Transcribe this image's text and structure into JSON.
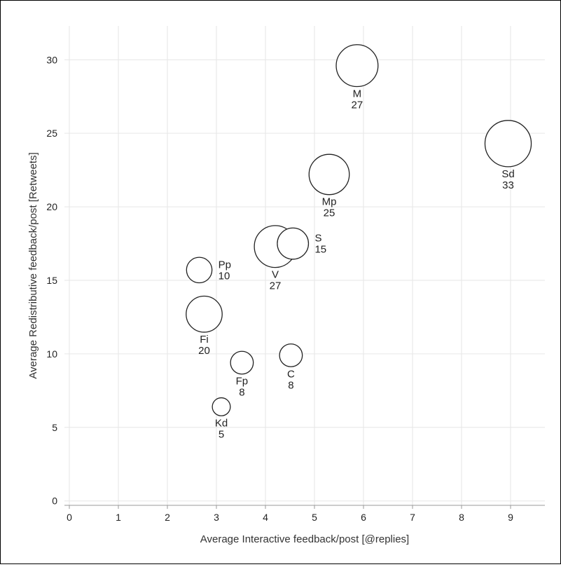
{
  "chart_data": {
    "type": "scatter",
    "subtype": "bubble",
    "xlabel": "Average Interactive feedback/post [@replies]",
    "ylabel": "Average Redistributive feedback/post [Retweets]",
    "xlim": [
      -0.1,
      9.7
    ],
    "ylim": [
      -0.3,
      32.3
    ],
    "xticks": [
      0,
      1,
      2,
      3,
      4,
      5,
      6,
      7,
      8,
      9
    ],
    "yticks": [
      0,
      5,
      10,
      15,
      20,
      25,
      30
    ],
    "grid": true,
    "points": [
      {
        "label": "M",
        "value": 27,
        "x": 5.87,
        "y": 29.6
      },
      {
        "label": "Sd",
        "value": 33,
        "x": 8.95,
        "y": 24.3
      },
      {
        "label": "Mp",
        "value": 25,
        "x": 5.3,
        "y": 22.2
      },
      {
        "label": "V",
        "value": 27,
        "x": 4.2,
        "y": 17.3
      },
      {
        "label": "S",
        "value": 15,
        "x": 4.56,
        "y": 17.5
      },
      {
        "label": "Pp",
        "value": 10,
        "x": 2.65,
        "y": 15.7
      },
      {
        "label": "Fi",
        "value": 20,
        "x": 2.75,
        "y": 12.7
      },
      {
        "label": "C",
        "value": 8,
        "x": 4.52,
        "y": 9.9
      },
      {
        "label": "Fp",
        "value": 8,
        "x": 3.52,
        "y": 9.4
      },
      {
        "label": "Kd",
        "value": 5,
        "x": 3.1,
        "y": 6.4
      }
    ]
  }
}
